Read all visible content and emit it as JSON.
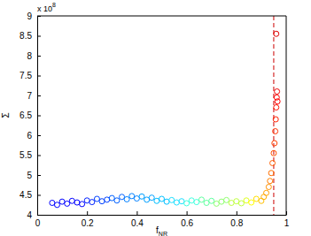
{
  "chart_data": {
    "type": "scatter",
    "marker": "circle",
    "x_label": {
      "text": "f",
      "subscript": "NR"
    },
    "y_label": "Σ",
    "annotations": [
      {
        "text": "x 10",
        "superscript": "8"
      }
    ],
    "xlim": [
      0,
      1
    ],
    "xticks": [
      0,
      0.2,
      0.4,
      0.6,
      0.8,
      1
    ],
    "ylim": [
      4,
      9
    ],
    "yticks": [
      4,
      4.5,
      5,
      5.5,
      6,
      6.5,
      7,
      7.5,
      8,
      8.5,
      9
    ],
    "vline": {
      "x": 0.95,
      "color": "#cc0000",
      "line_style": "dashed"
    },
    "x": [
      0.06,
      0.08,
      0.1,
      0.12,
      0.14,
      0.16,
      0.18,
      0.2,
      0.22,
      0.24,
      0.26,
      0.28,
      0.3,
      0.32,
      0.34,
      0.36,
      0.38,
      0.4,
      0.42,
      0.44,
      0.46,
      0.48,
      0.5,
      0.52,
      0.54,
      0.56,
      0.58,
      0.6,
      0.62,
      0.64,
      0.66,
      0.68,
      0.7,
      0.72,
      0.74,
      0.76,
      0.78,
      0.8,
      0.82,
      0.84,
      0.86,
      0.88,
      0.9,
      0.91,
      0.92,
      0.93,
      0.935,
      0.94,
      0.945,
      0.95,
      0.953,
      0.956,
      0.958,
      0.96,
      0.962,
      0.963,
      0.965,
      0.96
    ],
    "values": [
      4.3,
      4.25,
      4.33,
      4.28,
      4.35,
      4.31,
      4.27,
      4.36,
      4.32,
      4.4,
      4.34,
      4.38,
      4.42,
      4.36,
      4.45,
      4.39,
      4.47,
      4.41,
      4.46,
      4.38,
      4.43,
      4.35,
      4.4,
      4.33,
      4.37,
      4.31,
      4.34,
      4.29,
      4.36,
      4.32,
      4.38,
      4.3,
      4.35,
      4.28,
      4.33,
      4.37,
      4.3,
      4.34,
      4.29,
      4.36,
      4.31,
      4.4,
      4.35,
      4.45,
      4.55,
      4.7,
      4.85,
      5.05,
      5.3,
      5.55,
      5.8,
      6.1,
      6.4,
      6.7,
      6.95,
      7.1,
      6.85,
      8.55
    ],
    "colors": [
      "#0000ff",
      "#0000ff",
      "#0000ff",
      "#0000ff",
      "#0000ff",
      "#0000ff",
      "#0000ff",
      "#0020ff",
      "#0020ff",
      "#0040ff",
      "#0040ff",
      "#0040ff",
      "#0060ff",
      "#0060ff",
      "#0060ff",
      "#0080ff",
      "#0080ff",
      "#0080ff",
      "#00a0ff",
      "#00a0ff",
      "#00a0ff",
      "#00c0ff",
      "#00c0ff",
      "#00c0ff",
      "#20e0ff",
      "#20e0ff",
      "#20e0ff",
      "#40ffe0",
      "#40ffe0",
      "#40ffe0",
      "#60ffa0",
      "#60ffa0",
      "#60ffa0",
      "#90ff70",
      "#90ff70",
      "#90ff70",
      "#c0ff40",
      "#c0ff40",
      "#c0ff40",
      "#e0ff20",
      "#ffff00",
      "#ffe000",
      "#ffc000",
      "#ffb000",
      "#ffa000",
      "#ff9000",
      "#ff8000",
      "#ff7000",
      "#ff6000",
      "#ff5000",
      "#ff4000",
      "#ff3000",
      "#ff2000",
      "#ff1000",
      "#ff0000",
      "#f00000",
      "#ff0000",
      "#e00000"
    ]
  }
}
